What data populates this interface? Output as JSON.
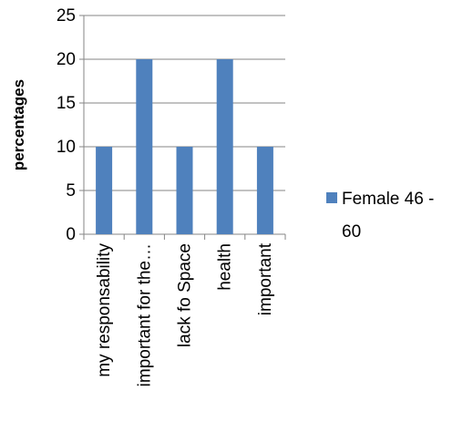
{
  "chart_data": {
    "type": "bar",
    "title": "",
    "xlabel": "",
    "ylabel": "percentages",
    "ylim": [
      0,
      25
    ],
    "yticks": [
      0,
      5,
      10,
      15,
      20,
      25
    ],
    "categories": [
      "my responsability",
      "important for the…",
      "lack fo Space",
      "health",
      "important"
    ],
    "series": [
      {
        "name": "Female 46 - 60",
        "values": [
          10,
          20,
          10,
          20,
          10
        ],
        "color": "#4f81bd"
      }
    ],
    "grid": "horizontal",
    "legend_position": "right"
  }
}
